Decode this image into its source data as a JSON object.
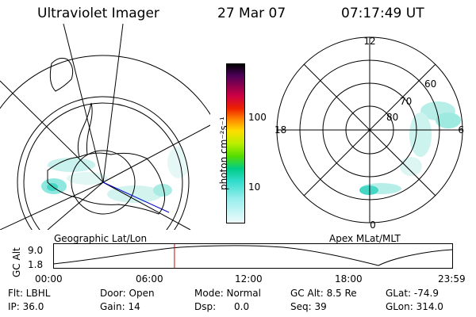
{
  "header": {
    "title": "Ultraviolet Imager",
    "date": "27 Mar 07",
    "time": "07:17:49 UT"
  },
  "colorbar": {
    "unit_label": "photon cm⁻²s⁻¹",
    "ticks": [
      "100",
      "10"
    ]
  },
  "polar_plot": {
    "mlt_labels": {
      "top": "12",
      "right": "6",
      "bottom": "0",
      "left": "18"
    },
    "mlat_labels": [
      "80",
      "70",
      "60"
    ]
  },
  "map_label": "Geographic Lat/Lon",
  "polar_label": "Apex MLat/MLT",
  "timeline": {
    "axis_label": "GC Alt",
    "y_ticks": [
      "9.0",
      "1.8"
    ],
    "x_ticks": [
      "00:00",
      "06:00",
      "12:00",
      "18:00",
      "23:59"
    ],
    "current_time_fraction": 0.304
  },
  "info": {
    "col1": [
      "Flt: LBHL",
      "IP: 36.0"
    ],
    "col2": [
      "Door: Open",
      "Gain: 14"
    ],
    "col3": [
      "Mode: Normal",
      "Dsp:      0.0"
    ],
    "col4": [
      "GC Alt: 8.5 Re",
      "Seq: 39"
    ],
    "col5": [
      "GLat: -74.9",
      "GLon: 314.0"
    ]
  },
  "colors": {
    "aurora": "#5ce6d8",
    "marker": "#dd0000",
    "meridian": "#0000cc"
  }
}
